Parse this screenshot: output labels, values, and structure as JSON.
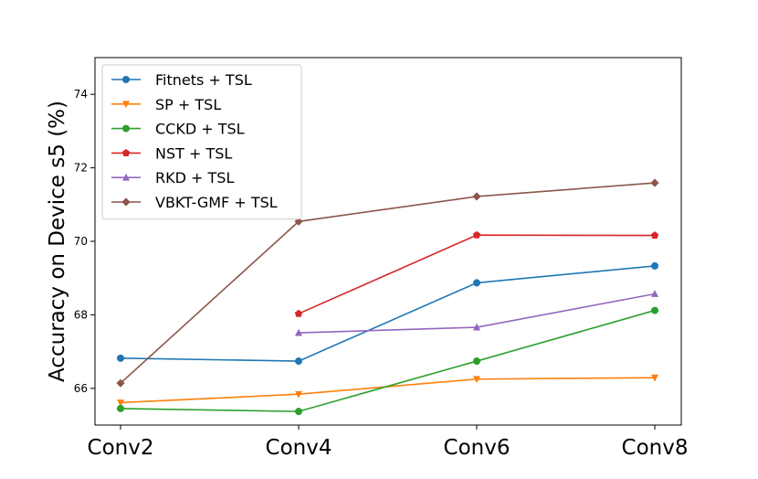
{
  "chart_data": {
    "type": "line",
    "title": "",
    "xlabel": "",
    "ylabel": "Accuracy on Device s5 (%)",
    "categories": [
      "Conv2",
      "Conv4",
      "Conv6",
      "Conv8"
    ],
    "ylim": [
      65.0,
      75.0
    ],
    "yticks": [
      66,
      68,
      70,
      72,
      74
    ],
    "grid": false,
    "legend_position": "top-left",
    "series": [
      {
        "name": "Fitnets + TSL",
        "color": "#1f77b4",
        "marker": "circle",
        "values": [
          66.82,
          66.74,
          68.87,
          69.33
        ]
      },
      {
        "name": "SP + TSL",
        "color": "#ff7f0e",
        "marker": "triangle-down",
        "values": [
          65.61,
          65.84,
          66.25,
          66.29
        ]
      },
      {
        "name": "CCKD + TSL",
        "color": "#2ca02c",
        "marker": "circle",
        "values": [
          65.45,
          65.37,
          66.74,
          68.12
        ]
      },
      {
        "name": "NST + TSL",
        "color": "#d62728",
        "marker": "pentagon",
        "values": [
          null,
          68.03,
          70.17,
          70.16
        ]
      },
      {
        "name": "RKD + TSL",
        "color": "#9467bd",
        "marker": "triangle-up",
        "values": [
          null,
          67.51,
          67.66,
          68.57
        ]
      },
      {
        "name": "VBKT-GMF + TSL",
        "color": "#8c564b",
        "marker": "diamond",
        "values": [
          66.14,
          70.54,
          71.22,
          71.59
        ]
      }
    ]
  }
}
